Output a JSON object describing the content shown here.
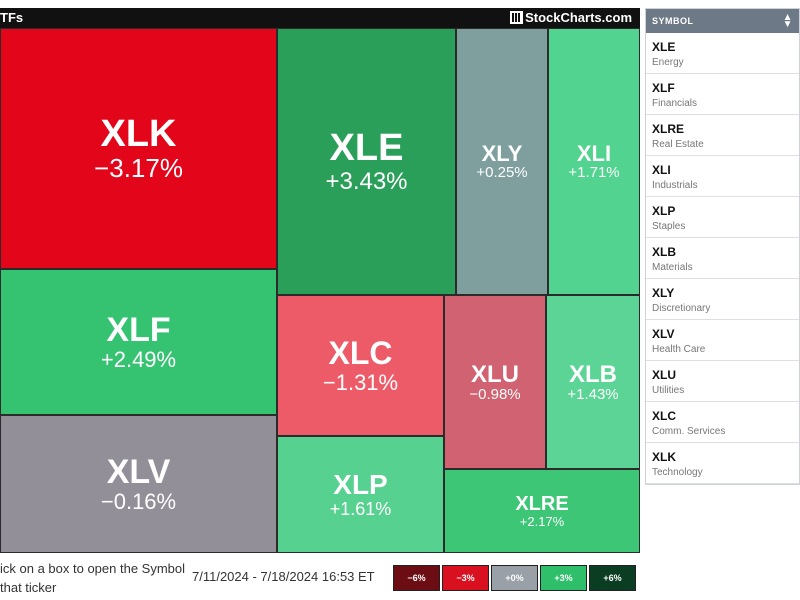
{
  "header": {
    "title": "TFs",
    "brand": "StockCharts.com"
  },
  "tiles": [
    {
      "id": "XLK",
      "symbol": "XLK",
      "change": "−3.17%",
      "color": "#e3061b"
    },
    {
      "id": "XLE",
      "symbol": "XLE",
      "change": "+3.43%",
      "color": "#2a9f5a"
    },
    {
      "id": "XLY",
      "symbol": "XLY",
      "change": "+0.25%",
      "color": "#7f9f9f"
    },
    {
      "id": "XLI",
      "symbol": "XLI",
      "change": "+1.71%",
      "color": "#52d38f"
    },
    {
      "id": "XLF",
      "symbol": "XLF",
      "change": "+2.49%",
      "color": "#35c271"
    },
    {
      "id": "XLC",
      "symbol": "XLC",
      "change": "−1.31%",
      "color": "#ee5b68"
    },
    {
      "id": "XLU",
      "symbol": "XLU",
      "change": "−0.98%",
      "color": "#d16271"
    },
    {
      "id": "XLB",
      "symbol": "XLB",
      "change": "+1.43%",
      "color": "#5bd495"
    },
    {
      "id": "XLV",
      "symbol": "XLV",
      "change": "−0.16%",
      "color": "#928f99"
    },
    {
      "id": "XLP",
      "symbol": "XLP",
      "change": "+1.61%",
      "color": "#56d190"
    },
    {
      "id": "XLRE",
      "symbol": "XLRE",
      "change": "+2.17%",
      "color": "#3cc675"
    }
  ],
  "footer": {
    "hint": "ick on a box to open the Symbol\n that ticker",
    "date_range": "7/11/2024 - 7/18/2024 16:53 ET",
    "legend": [
      {
        "label": "−6%",
        "color": "#6b0d12"
      },
      {
        "label": "−3%",
        "color": "#d9101f"
      },
      {
        "label": "+0%",
        "color": "#99a0a8"
      },
      {
        "label": "+3%",
        "color": "#2fbf6b"
      },
      {
        "label": "+6%",
        "color": "#0b3d22"
      }
    ]
  },
  "sidebar": {
    "header": "SYMBOL",
    "sort_icon": "sort-icon",
    "items": [
      {
        "symbol": "XLE",
        "name": "Energy"
      },
      {
        "symbol": "XLF",
        "name": "Financials"
      },
      {
        "symbol": "XLRE",
        "name": "Real Estate"
      },
      {
        "symbol": "XLI",
        "name": "Industrials"
      },
      {
        "symbol": "XLP",
        "name": "Staples"
      },
      {
        "symbol": "XLB",
        "name": "Materials"
      },
      {
        "symbol": "XLY",
        "name": "Discretionary"
      },
      {
        "symbol": "XLV",
        "name": "Health Care"
      },
      {
        "symbol": "XLU",
        "name": "Utilities"
      },
      {
        "symbol": "XLC",
        "name": "Comm. Services"
      },
      {
        "symbol": "XLK",
        "name": "Technology"
      }
    ]
  }
}
